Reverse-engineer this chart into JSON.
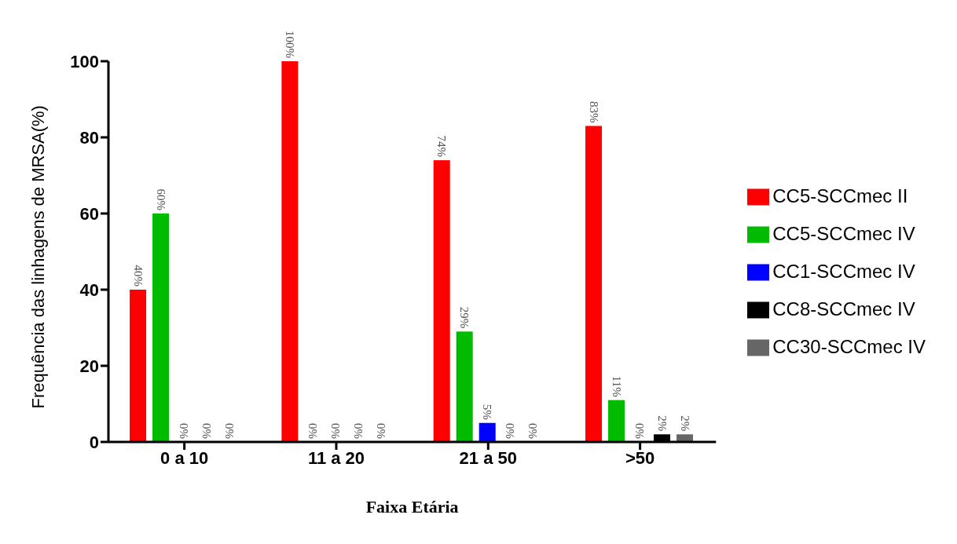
{
  "chart_data": {
    "type": "bar",
    "xlabel": "Faixa Etária",
    "ylabel": "Frequência das linhagens de MRSA(%)",
    "categories": [
      "0 a 10",
      "11 a 20",
      "21 a 50",
      ">50"
    ],
    "series": [
      {
        "name": "CC5-SCCmec II",
        "color": "#ff0000",
        "values": [
          40,
          100,
          74,
          83
        ],
        "value_labels": [
          "40%",
          "100%",
          "74%",
          "83%"
        ]
      },
      {
        "name": "CC5-SCCmec IV",
        "color": "#00bb00",
        "values": [
          60,
          0,
          29,
          11
        ],
        "value_labels": [
          "60%",
          "0%",
          "29%",
          "11%"
        ]
      },
      {
        "name": "CC1-SCCmec IV",
        "color": "#0000ff",
        "values": [
          0,
          0,
          5,
          0
        ],
        "value_labels": [
          "0%",
          "0%",
          "5%",
          "0%"
        ]
      },
      {
        "name": "CC8-SCCmec IV",
        "color": "#000000",
        "values": [
          0,
          0,
          0,
          2
        ],
        "value_labels": [
          "0%",
          "0%",
          "0%",
          "2%"
        ]
      },
      {
        "name": "CC30-SCCmec IV",
        "color": "#666666",
        "values": [
          0,
          0,
          0,
          2
        ],
        "value_labels": [
          "0%",
          "0%",
          "0%",
          "2%"
        ]
      }
    ],
    "ylim": [
      0,
      100
    ],
    "yticks": [
      0,
      20,
      40,
      60,
      80,
      100
    ],
    "grid": false,
    "legend": "right"
  }
}
